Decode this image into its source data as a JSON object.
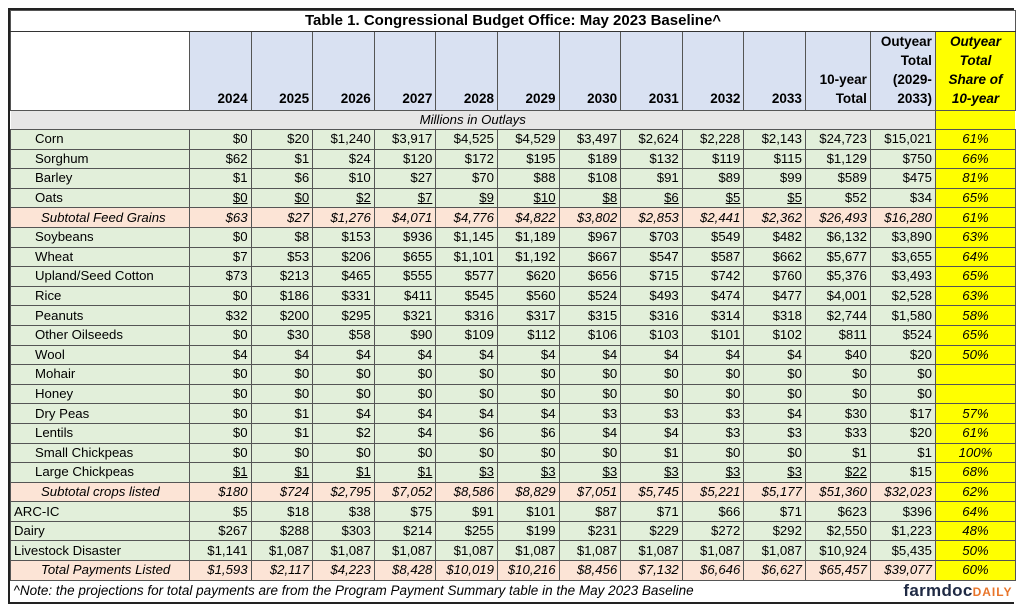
{
  "title": "Table 1. Congressional Budget Office: May 2023 Baseline^",
  "columns": [
    "2024",
    "2025",
    "2026",
    "2027",
    "2028",
    "2029",
    "2030",
    "2031",
    "2032",
    "2033"
  ],
  "col_10yr": [
    "10-year",
    "Total"
  ],
  "col_outyear": [
    "Outyear",
    "Total",
    "(2029-",
    "2033)"
  ],
  "col_share": [
    "Outyear",
    "Total",
    "Share of",
    "10-year"
  ],
  "units": "Millions in Outlays",
  "colors": {
    "header": "#d9e1f2",
    "row": "#e2efda",
    "subtotal": "#fce4d6",
    "share": "#ffff00"
  },
  "rows": [
    {
      "label": "Corn",
      "type": "item",
      "values": [
        "$0",
        "$20",
        "$1,240",
        "$3,917",
        "$4,525",
        "$4,529",
        "$3,497",
        "$2,624",
        "$2,228",
        "$2,143",
        "$24,723",
        "$15,021"
      ],
      "share": "61%"
    },
    {
      "label": "Sorghum",
      "type": "item",
      "values": [
        "$62",
        "$1",
        "$24",
        "$120",
        "$172",
        "$195",
        "$189",
        "$132",
        "$119",
        "$115",
        "$1,129",
        "$750"
      ],
      "share": "66%"
    },
    {
      "label": "Barley",
      "type": "item",
      "values": [
        "$1",
        "$6",
        "$10",
        "$27",
        "$70",
        "$88",
        "$108",
        "$91",
        "$89",
        "$99",
        "$589",
        "$475"
      ],
      "share": "81%"
    },
    {
      "label": "Oats",
      "type": "item",
      "underline": 10,
      "values": [
        "$0",
        "$0",
        "$2",
        "$7",
        "$9",
        "$10",
        "$8",
        "$6",
        "$5",
        "$5",
        "$52",
        "$34"
      ],
      "share": "65%"
    },
    {
      "label": "Subtotal Feed Grains",
      "type": "sub",
      "values": [
        "$63",
        "$27",
        "$1,276",
        "$4,071",
        "$4,776",
        "$4,822",
        "$3,802",
        "$2,853",
        "$2,441",
        "$2,362",
        "$26,493",
        "$16,280"
      ],
      "share": "61%"
    },
    {
      "label": "Soybeans",
      "type": "item",
      "values": [
        "$0",
        "$8",
        "$153",
        "$936",
        "$1,145",
        "$1,189",
        "$967",
        "$703",
        "$549",
        "$482",
        "$6,132",
        "$3,890"
      ],
      "share": "63%"
    },
    {
      "label": "Wheat",
      "type": "item",
      "values": [
        "$7",
        "$53",
        "$206",
        "$655",
        "$1,101",
        "$1,192",
        "$667",
        "$547",
        "$587",
        "$662",
        "$5,677",
        "$3,655"
      ],
      "share": "64%"
    },
    {
      "label": "Upland/Seed Cotton",
      "type": "item",
      "values": [
        "$73",
        "$213",
        "$465",
        "$555",
        "$577",
        "$620",
        "$656",
        "$715",
        "$742",
        "$760",
        "$5,376",
        "$3,493"
      ],
      "share": "65%"
    },
    {
      "label": "Rice",
      "type": "item",
      "values": [
        "$0",
        "$186",
        "$331",
        "$411",
        "$545",
        "$560",
        "$524",
        "$493",
        "$474",
        "$477",
        "$4,001",
        "$2,528"
      ],
      "share": "63%"
    },
    {
      "label": "Peanuts",
      "type": "item",
      "values": [
        "$32",
        "$200",
        "$295",
        "$321",
        "$316",
        "$317",
        "$315",
        "$316",
        "$314",
        "$318",
        "$2,744",
        "$1,580"
      ],
      "share": "58%"
    },
    {
      "label": "Other Oilseeds",
      "type": "item",
      "values": [
        "$0",
        "$30",
        "$58",
        "$90",
        "$109",
        "$112",
        "$106",
        "$103",
        "$101",
        "$102",
        "$811",
        "$524"
      ],
      "share": "65%"
    },
    {
      "label": "Wool",
      "type": "item",
      "values": [
        "$4",
        "$4",
        "$4",
        "$4",
        "$4",
        "$4",
        "$4",
        "$4",
        "$4",
        "$4",
        "$40",
        "$20"
      ],
      "share": "50%"
    },
    {
      "label": "Mohair",
      "type": "item",
      "values": [
        "$0",
        "$0",
        "$0",
        "$0",
        "$0",
        "$0",
        "$0",
        "$0",
        "$0",
        "$0",
        "$0",
        "$0"
      ],
      "share": ""
    },
    {
      "label": "Honey",
      "type": "item",
      "values": [
        "$0",
        "$0",
        "$0",
        "$0",
        "$0",
        "$0",
        "$0",
        "$0",
        "$0",
        "$0",
        "$0",
        "$0"
      ],
      "share": ""
    },
    {
      "label": "Dry Peas",
      "type": "item",
      "values": [
        "$0",
        "$1",
        "$4",
        "$4",
        "$4",
        "$4",
        "$3",
        "$3",
        "$3",
        "$4",
        "$30",
        "$17"
      ],
      "share": "57%"
    },
    {
      "label": "Lentils",
      "type": "item",
      "values": [
        "$0",
        "$1",
        "$2",
        "$4",
        "$6",
        "$6",
        "$4",
        "$4",
        "$3",
        "$3",
        "$33",
        "$20"
      ],
      "share": "61%"
    },
    {
      "label": "Small Chickpeas",
      "type": "item",
      "values": [
        "$0",
        "$0",
        "$0",
        "$0",
        "$0",
        "$0",
        "$0",
        "$1",
        "$0",
        "$0",
        "$1",
        "$1"
      ],
      "share": "100%"
    },
    {
      "label": "Large Chickpeas",
      "type": "item",
      "underline": 11,
      "values": [
        "$1",
        "$1",
        "$1",
        "$1",
        "$3",
        "$3",
        "$3",
        "$3",
        "$3",
        "$3",
        "$22",
        "$15"
      ],
      "share": "68%"
    },
    {
      "label": "Subtotal crops listed",
      "type": "sub",
      "values": [
        "$180",
        "$724",
        "$2,795",
        "$7,052",
        "$8,586",
        "$8,829",
        "$7,051",
        "$5,745",
        "$5,221",
        "$5,177",
        "$51,360",
        "$32,023"
      ],
      "share": "62%"
    },
    {
      "label": "ARC-IC",
      "type": "main",
      "values": [
        "$5",
        "$18",
        "$38",
        "$75",
        "$91",
        "$101",
        "$87",
        "$71",
        "$66",
        "$71",
        "$623",
        "$396"
      ],
      "share": "64%"
    },
    {
      "label": "Dairy",
      "type": "main",
      "values": [
        "$267",
        "$288",
        "$303",
        "$214",
        "$255",
        "$199",
        "$231",
        "$229",
        "$272",
        "$292",
        "$2,550",
        "$1,223"
      ],
      "share": "48%"
    },
    {
      "label": "Livestock Disaster",
      "type": "main",
      "values": [
        "$1,141",
        "$1,087",
        "$1,087",
        "$1,087",
        "$1,087",
        "$1,087",
        "$1,087",
        "$1,087",
        "$1,087",
        "$1,087",
        "$10,924",
        "$5,435"
      ],
      "share": "50%"
    },
    {
      "label": "Total Payments Listed",
      "type": "sub",
      "values": [
        "$1,593",
        "$2,117",
        "$4,223",
        "$8,428",
        "$10,019",
        "$10,216",
        "$8,456",
        "$7,132",
        "$6,646",
        "$6,627",
        "$65,457",
        "$39,077"
      ],
      "share": "60%"
    }
  ],
  "note": "^Note: the projections for total payments are from the Program Payment Summary table in the May 2023 Baseline",
  "logo": {
    "main": "farmdoc",
    "accent": "DAILY"
  }
}
